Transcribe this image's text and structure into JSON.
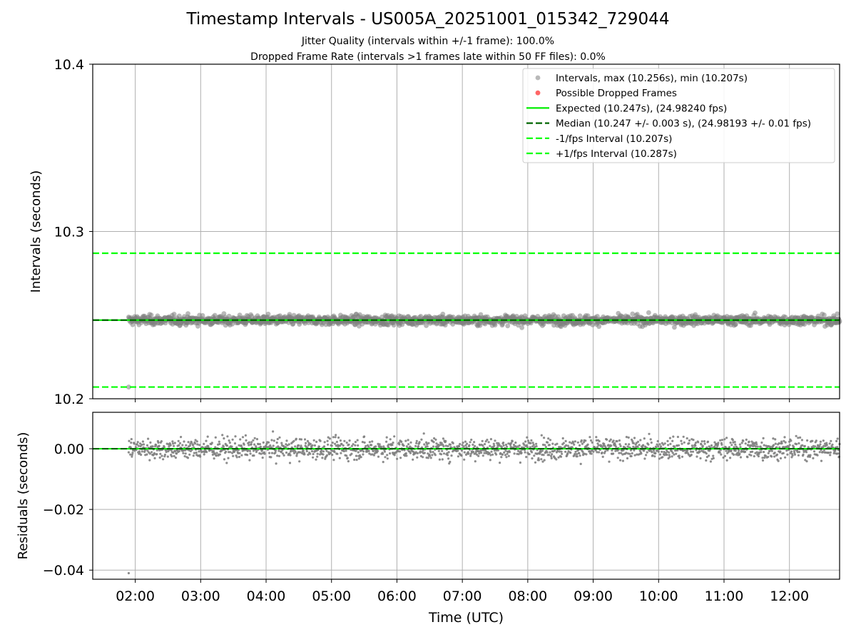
{
  "title": "Timestamp Intervals - US005A_20251001_015342_729044",
  "subtitle_lines": [
    "Jitter Quality (intervals within +/-1 frame): 100.0%",
    "Dropped Frame Rate (intervals >1 frames late within 50 FF files): 0.0%"
  ],
  "colors": {
    "points": "#808080",
    "dropped": "#ff0000",
    "expected": "#00ee00",
    "median": "#006400",
    "bounds": "#00ff00",
    "grid": "#b0b0b0"
  },
  "chart_data": [
    {
      "type": "scatter",
      "panel": "top",
      "xlabel": "",
      "ylabel": "Intervals (seconds)",
      "ylim": [
        10.2,
        10.4
      ],
      "yticks": [
        "10.2",
        "10.3",
        "10.4"
      ],
      "grid": true,
      "x_range": [
        "01:21",
        "12:46"
      ],
      "data_start": "01:54",
      "data_end": "12:46",
      "series": [
        {
          "name": "Intervals, max (10.256s), min (10.207s)",
          "kind": "points",
          "mean": 10.247,
          "std": 0.002,
          "max": 10.256,
          "min": 10.207,
          "outlier": {
            "x": "01:54",
            "y": 10.207
          }
        },
        {
          "name": "Possible Dropped Frames",
          "kind": "points",
          "count": 0
        },
        {
          "name": "Expected (10.247s), (24.98240 fps)",
          "kind": "hline",
          "y": 10.247,
          "style": "solid"
        },
        {
          "name": "Median (10.247 +/- 0.003 s), (24.98193 +/- 0.01 fps)",
          "kind": "hline",
          "y": 10.247,
          "style": "dashed"
        },
        {
          "name": "-1/fps Interval (10.207s)",
          "kind": "hline",
          "y": 10.207,
          "style": "dashed"
        },
        {
          "name": "+1/fps Interval (10.287s)",
          "kind": "hline",
          "y": 10.287,
          "style": "dashed"
        }
      ],
      "legend": "top-right"
    },
    {
      "type": "scatter",
      "panel": "bottom",
      "xlabel": "Time (UTC)",
      "ylabel": "Residuals (seconds)",
      "ylim": [
        -0.043,
        0.012
      ],
      "yticks": [
        "0.00",
        "−0.02",
        "−0.04"
      ],
      "ytick_values": [
        0.0,
        -0.02,
        -0.04
      ],
      "xticks": [
        "02:00",
        "03:00",
        "04:00",
        "05:00",
        "06:00",
        "07:00",
        "08:00",
        "09:00",
        "10:00",
        "11:00",
        "12:00"
      ],
      "grid": true,
      "series": [
        {
          "name": "",
          "kind": "points",
          "mean": 0.0,
          "std": 0.0025,
          "max": 0.009,
          "min": -0.041,
          "outlier": {
            "x": "01:54",
            "y": -0.041
          }
        },
        {
          "name": "",
          "kind": "hline",
          "y": 0.0,
          "style": "solid"
        },
        {
          "name": "",
          "kind": "hline",
          "y": 0.0,
          "style": "dashed"
        }
      ]
    }
  ]
}
